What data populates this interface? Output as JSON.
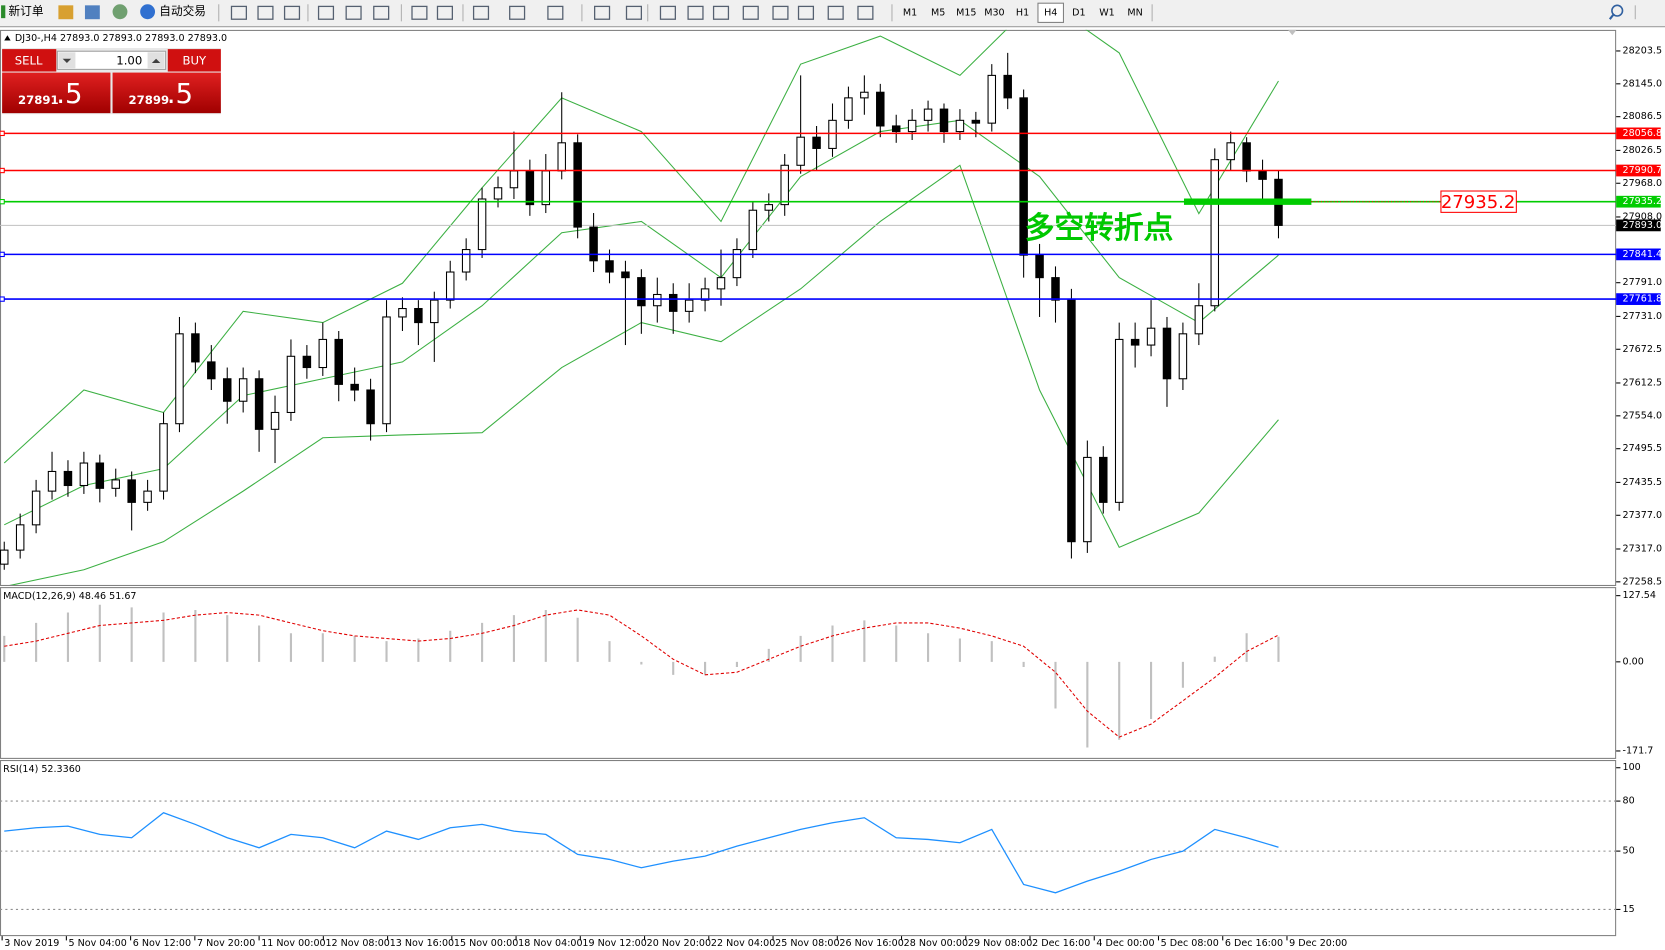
{
  "toolbar": {
    "new_order": "新订单",
    "auto_trade": "自动交易",
    "timeframes": [
      "M1",
      "M5",
      "M15",
      "M30",
      "H1",
      "H4",
      "D1",
      "W1",
      "MN"
    ]
  },
  "trade_panel": {
    "sell": "SELL",
    "buy": "BUY",
    "lots": "1.00",
    "sell_price": "27891",
    "sell_fraction": ".5",
    "buy_price": "27899",
    "buy_fraction": ".5"
  },
  "chart_data": [
    {
      "type": "candlestick",
      "title": "DJ30-,H4  27893.0 27893.0 27893.0 27893.0",
      "ylim": [
        27253,
        28241
      ],
      "yticks": [
        28203.5,
        {
          "value": 28145,
          "label": "28145.0"
        },
        28086.5,
        28026.5,
        {
          "value": 27968,
          "label": "27968.0"
        },
        {
          "value": 27908,
          "label": "27908.0"
        },
        {
          "value": 27791,
          "label": "27791.0"
        },
        {
          "value": 27731,
          "label": "27731.0"
        },
        27672.5,
        27612.5,
        {
          "value": 27554,
          "label": "27554.0"
        },
        27495.5,
        27435.5,
        {
          "value": 27377,
          "label": "27377.0"
        },
        {
          "value": 27317,
          "label": "27317.0"
        },
        27258.5
      ],
      "candles": [
        [
          27290,
          27330,
          27280,
          27315
        ],
        [
          27315,
          27380,
          27300,
          27360
        ],
        [
          27360,
          27440,
          27345,
          27420
        ],
        [
          27420,
          27490,
          27405,
          27455
        ],
        [
          27455,
          27475,
          27410,
          27430
        ],
        [
          27430,
          27490,
          27415,
          27470
        ],
        [
          27470,
          27485,
          27400,
          27425
        ],
        [
          27425,
          27460,
          27410,
          27440
        ],
        [
          27440,
          27455,
          27350,
          27400
        ],
        [
          27400,
          27440,
          27385,
          27420
        ],
        [
          27420,
          27560,
          27405,
          27540
        ],
        [
          27540,
          27730,
          27525,
          27700
        ],
        [
          27700,
          27720,
          27630,
          27650
        ],
        [
          27650,
          27680,
          27600,
          27620
        ],
        [
          27620,
          27640,
          27540,
          27580
        ],
        [
          27580,
          27640,
          27560,
          27620
        ],
        [
          27620,
          27635,
          27490,
          27530
        ],
        [
          27530,
          27590,
          27470,
          27560
        ],
        [
          27560,
          27690,
          27545,
          27660
        ],
        [
          27660,
          27680,
          27620,
          27640
        ],
        [
          27640,
          27720,
          27625,
          27690
        ],
        [
          27690,
          27705,
          27580,
          27610
        ],
        [
          27610,
          27640,
          27580,
          27600
        ],
        [
          27600,
          27620,
          27510,
          27540
        ],
        [
          27540,
          27760,
          27525,
          27730
        ],
        [
          27730,
          27765,
          27705,
          27745
        ],
        [
          27745,
          27760,
          27680,
          27720
        ],
        [
          27720,
          27775,
          27650,
          27760
        ],
        [
          27760,
          27830,
          27745,
          27810
        ],
        [
          27810,
          27870,
          27795,
          27850
        ],
        [
          27850,
          27960,
          27835,
          27940
        ],
        [
          27940,
          27980,
          27925,
          27960
        ],
        [
          27960,
          28060,
          27940,
          27990
        ],
        [
          27990,
          28010,
          27910,
          27930
        ],
        [
          27930,
          28020,
          27915,
          27990
        ],
        [
          27990,
          28130,
          27975,
          28040
        ],
        [
          28040,
          28055,
          27870,
          27890
        ],
        [
          27890,
          27915,
          27810,
          27830
        ],
        [
          27830,
          27850,
          27790,
          27810
        ],
        [
          27810,
          27830,
          27680,
          27800
        ],
        [
          27800,
          27815,
          27700,
          27750
        ],
        [
          27750,
          27800,
          27720,
          27770
        ],
        [
          27770,
          27790,
          27700,
          27740
        ],
        [
          27740,
          27790,
          27720,
          27760
        ],
        [
          27760,
          27800,
          27740,
          27780
        ],
        [
          27780,
          27850,
          27750,
          27800
        ],
        [
          27800,
          27870,
          27785,
          27850
        ],
        [
          27850,
          27935,
          27835,
          27920
        ],
        [
          27920,
          27950,
          27900,
          27930
        ],
        [
          27930,
          28020,
          27910,
          28000
        ],
        [
          28000,
          28160,
          27985,
          28050
        ],
        [
          28050,
          28070,
          27990,
          28030
        ],
        [
          28030,
          28110,
          28015,
          28080
        ],
        [
          28080,
          28140,
          28065,
          28120
        ],
        [
          28120,
          28160,
          28090,
          28130
        ],
        [
          28130,
          28145,
          28050,
          28070
        ],
        [
          28070,
          28090,
          28040,
          28060
        ],
        [
          28060,
          28100,
          28045,
          28080
        ],
        [
          28080,
          28115,
          28060,
          28100
        ],
        [
          28100,
          28110,
          28040,
          28060
        ],
        [
          28060,
          28100,
          28045,
          28080
        ],
        [
          28080,
          28095,
          28050,
          28075
        ],
        [
          28075,
          28180,
          28060,
          28160
        ],
        [
          28160,
          28200,
          28100,
          28120
        ],
        [
          28120,
          28135,
          27800,
          27840
        ],
        [
          27840,
          27860,
          27730,
          27800
        ],
        [
          27800,
          27820,
          27720,
          27760
        ],
        [
          27760,
          27780,
          27300,
          27330
        ],
        [
          27330,
          27510,
          27310,
          27480
        ],
        [
          27480,
          27500,
          27380,
          27400
        ],
        [
          27400,
          27720,
          27385,
          27690
        ],
        [
          27690,
          27720,
          27640,
          27680
        ],
        [
          27680,
          27760,
          27660,
          27710
        ],
        [
          27710,
          27730,
          27570,
          27620
        ],
        [
          27620,
          27720,
          27600,
          27700
        ],
        [
          27700,
          27790,
          27680,
          27750
        ],
        [
          27750,
          28030,
          27740,
          28010
        ],
        [
          28010,
          28060,
          27990,
          28040
        ],
        [
          28040,
          28050,
          27970,
          27990
        ],
        [
          27990,
          28010,
          27940,
          27975
        ],
        [
          27975,
          27990,
          27870,
          27893
        ]
      ],
      "bollinger": {
        "color": "#3cb043",
        "x": [
          0,
          5,
          10,
          15,
          20,
          25,
          30,
          35,
          40,
          45,
          50,
          55,
          60,
          65,
          70,
          75,
          80
        ],
        "upper": [
          27470,
          27600,
          27560,
          27740,
          27720,
          27790,
          27960,
          28120,
          28060,
          27900,
          28180,
          28230,
          28160,
          28300,
          28200,
          27914,
          28150
        ],
        "middle": [
          27360,
          27430,
          27460,
          27590,
          27620,
          27650,
          27750,
          27880,
          27900,
          27800,
          27980,
          28060,
          28080,
          27980,
          27800,
          27720,
          27840
        ],
        "lower": [
          27250,
          27280,
          27330,
          27420,
          27515,
          27520,
          27524,
          27640,
          27720,
          27686,
          27780,
          27900,
          28000,
          27600,
          27320,
          27381,
          27547
        ]
      },
      "levels": [
        {
          "value": 28056.8,
          "color": "#ff0000"
        },
        {
          "value": 27990.7,
          "color": "#ff0000"
        },
        {
          "value": 27935.2,
          "color": "#00cc00"
        },
        {
          "value": 27841.4,
          "color": "#0000ff"
        },
        {
          "value": 27761.8,
          "color": "#0000ff"
        }
      ],
      "current_price": {
        "value": 27893,
        "label": "27893.0"
      },
      "annotation": "多空转折点"
    },
    {
      "type": "macd",
      "title": "MACD(12,26,9) 48.46 51.67",
      "ylim": [
        -185,
        142
      ],
      "yticks": [
        127.54,
        {
          "value": 0,
          "label": "0.00"
        },
        -171.7
      ],
      "x": [
        0,
        2,
        4,
        6,
        8,
        10,
        12,
        14,
        16,
        18,
        20,
        22,
        24,
        26,
        28,
        30,
        32,
        34,
        36,
        38,
        40,
        42,
        44,
        46,
        48,
        50,
        52,
        54,
        56,
        58,
        60,
        62,
        64,
        66,
        68,
        70,
        72,
        74,
        76,
        78,
        80
      ],
      "histogram": [
        50,
        75,
        95,
        110,
        105,
        95,
        100,
        90,
        70,
        55,
        55,
        50,
        40,
        45,
        60,
        75,
        90,
        100,
        85,
        40,
        -5,
        -25,
        -25,
        -10,
        25,
        50,
        70,
        80,
        70,
        55,
        45,
        40,
        -10,
        -90,
        -165,
        -150,
        -110,
        -50,
        10,
        55,
        48.46
      ],
      "signal": [
        30,
        40,
        55,
        70,
        75,
        80,
        90,
        95,
        90,
        75,
        60,
        50,
        45,
        40,
        45,
        55,
        70,
        90,
        100,
        90,
        50,
        5,
        -25,
        -20,
        5,
        30,
        50,
        65,
        75,
        75,
        65,
        50,
        30,
        -20,
        -95,
        -145,
        -120,
        -75,
        -30,
        20,
        51.67
      ]
    },
    {
      "type": "line",
      "title": "RSI(14) 52.3360",
      "ylim": [
        -1,
        104
      ],
      "yticks": [
        100,
        80,
        50,
        15
      ],
      "grid": [
        80,
        50,
        15
      ],
      "color": "#1e90ff",
      "x": [
        0,
        2,
        4,
        6,
        8,
        10,
        12,
        14,
        16,
        18,
        20,
        22,
        24,
        26,
        28,
        30,
        32,
        34,
        36,
        38,
        40,
        42,
        44,
        46,
        48,
        50,
        52,
        54,
        56,
        58,
        60,
        62,
        64,
        66,
        68,
        70,
        72,
        74,
        76,
        78,
        80
      ],
      "values": [
        62,
        64,
        65,
        60,
        58,
        73,
        66,
        58,
        52,
        60,
        58,
        52,
        62,
        57,
        64,
        66,
        62,
        60,
        48,
        45,
        40,
        44,
        47,
        53,
        58,
        63,
        67,
        70,
        58,
        57,
        55,
        63,
        30,
        25,
        32,
        38,
        45,
        50,
        63,
        58,
        52.336
      ],
      "x_labels": [
        "3 Nov 2019",
        "5 Nov 04:00",
        "6 Nov 12:00",
        "7 Nov 20:00",
        "11 Nov 00:00",
        "12 Nov 08:00",
        "13 Nov 16:00",
        "15 Nov 00:00",
        "18 Nov 04:00",
        "19 Nov 12:00",
        "20 Nov 20:00",
        "22 Nov 04:00",
        "25 Nov 08:00",
        "26 Nov 16:00",
        "28 Nov 00:00",
        "29 Nov 08:00",
        "2 Dec 16:00",
        "4 Dec 00:00",
        "5 Dec 08:00",
        "6 Dec 16:00",
        "9 Dec 20:00"
      ]
    }
  ]
}
